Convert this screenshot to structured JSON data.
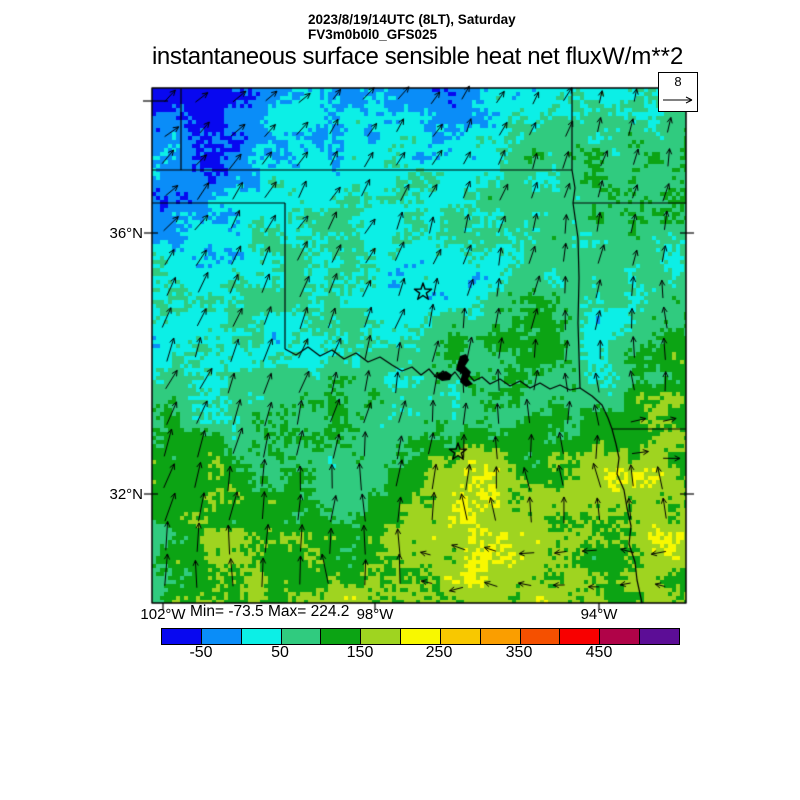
{
  "header": {
    "datetime": "2023/8/19/14UTC (8LT), Saturday",
    "model": "FV3m0b0l0_GFS025",
    "title": "instantaneous surface sensible heat net flux",
    "units": "W/m**2"
  },
  "reference_vector": {
    "value": "8"
  },
  "map_labels": {
    "lat": [
      {
        "label": "36°N"
      },
      {
        "label": "32°N"
      }
    ],
    "lon": [
      {
        "label": "102°W"
      },
      {
        "label": "98°W"
      },
      {
        "label": "94°W"
      }
    ],
    "stats": "Min= -73.5 Max= 224.2"
  },
  "colorbar": {
    "tick_labels": [
      "-50",
      "50",
      "150",
      "250",
      "350",
      "450"
    ],
    "colors": [
      "#0808F0",
      "#0A8DF8",
      "#0CEFE6",
      "#30CB7F",
      "#0CA414",
      "#9FD420",
      "#F8F800",
      "#F8C800",
      "#FA9E00",
      "#F55000",
      "#F80000",
      "#B00348",
      "#5C0D96"
    ]
  },
  "chart_data": {
    "type": "heatmap",
    "title": "instantaneous surface sensible heat net flux",
    "units": "W/m**2",
    "datetime": "2023/8/19/14UTC (8LT), Saturday",
    "model": "FV3m0b0l0_GFS025",
    "min": -73.5,
    "max": 224.2,
    "reference_vector_length": 8,
    "colorbar_tick_values": [
      -50,
      50,
      150,
      250,
      350,
      450
    ],
    "colorbar_bin_width": 50,
    "lat_ticks_labeled": [
      "36N",
      "32N"
    ],
    "lon_ticks_labeled": [
      "102W",
      "98W",
      "94W"
    ],
    "legend_position": "bottom",
    "overlay": "wind vectors and state borders with two star city markers"
  }
}
